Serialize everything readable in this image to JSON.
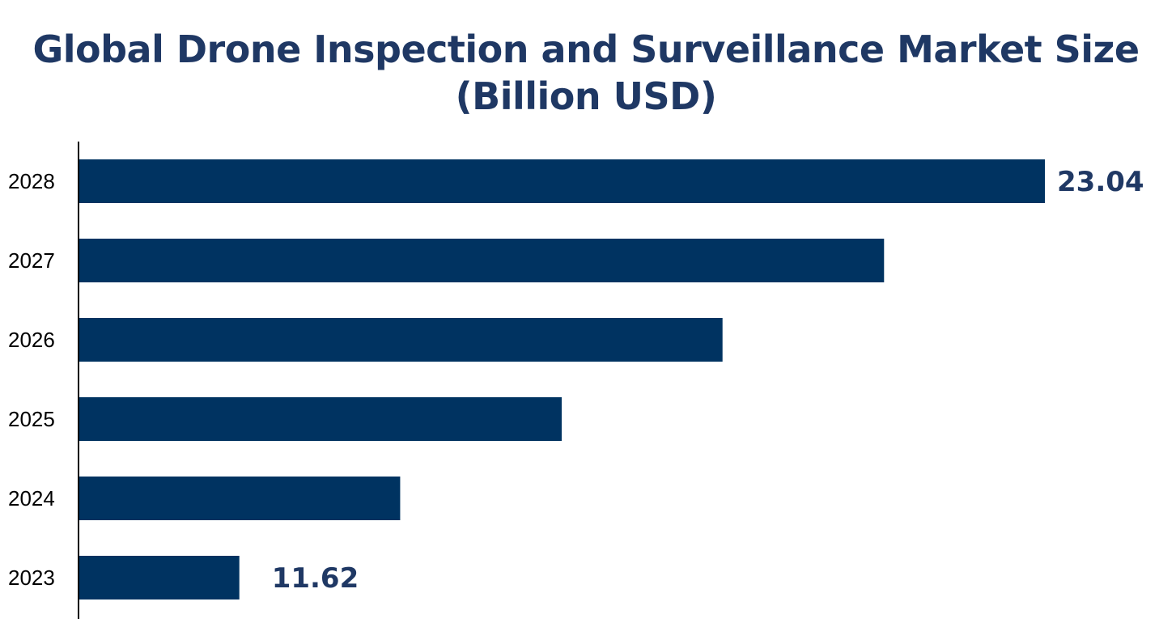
{
  "chart_data": {
    "type": "bar",
    "orientation": "horizontal",
    "title_lines": [
      "Global Drone Inspection and Surveillance Market Size",
      "(Billion USD)"
    ],
    "xlabel": "",
    "ylabel": "",
    "categories": [
      "2028",
      "2027",
      "2026",
      "2025",
      "2024",
      "2023"
    ],
    "values": [
      23.04,
      20.76,
      18.47,
      16.19,
      13.9,
      11.62
    ],
    "data_labels": [
      {
        "category": "2028",
        "text": "23.04"
      },
      {
        "category": "2023",
        "text": "11.62"
      }
    ],
    "xlim": [
      9.34,
      23.04
    ],
    "grid": false,
    "legend": "none",
    "colors": {
      "bar": "#003361",
      "title": "#1f3864",
      "data_label": "#1f3864",
      "axis": "#000000"
    }
  }
}
